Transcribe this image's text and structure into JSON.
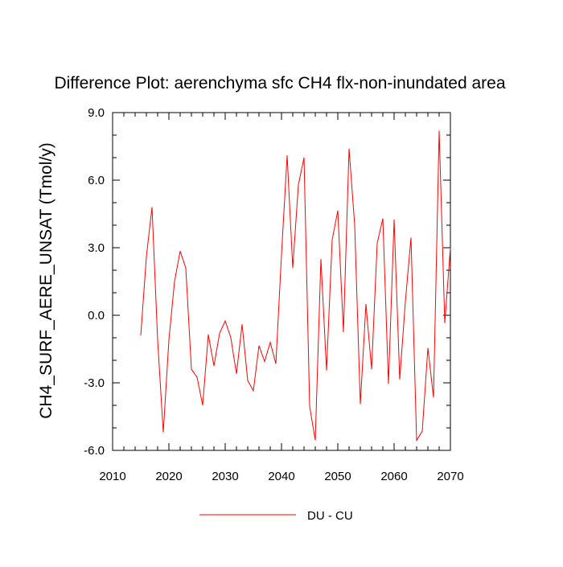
{
  "chart_data": {
    "type": "line",
    "title": "Difference Plot: aerenchyma sfc CH4 flx-non-inundated area",
    "xlabel": "",
    "ylabel": "CH4_SURF_AERE_UNSAT  (Tmol/y)",
    "xlim": [
      2010,
      2070
    ],
    "ylim": [
      -6.0,
      9.0
    ],
    "xticks": [
      2010,
      2020,
      2030,
      2040,
      2050,
      2060,
      2070
    ],
    "xtick_labels": [
      "2010",
      "2020",
      "2030",
      "2040",
      "2050",
      "2060",
      "2070"
    ],
    "yticks": [
      -6.0,
      -3.0,
      0.0,
      3.0,
      6.0,
      9.0
    ],
    "ytick_labels": [
      "-6.0",
      "-3.0",
      "0.0",
      "3.0",
      "6.0",
      "9.0"
    ],
    "legend_position": "bottom-center",
    "series": [
      {
        "name": "DU - CU",
        "color": "#ff0000",
        "x": [
          2015,
          2016,
          2017,
          2018,
          2019,
          2020,
          2021,
          2022,
          2023,
          2024,
          2025,
          2026,
          2027,
          2028,
          2029,
          2030,
          2031,
          2032,
          2033,
          2034,
          2035,
          2036,
          2037,
          2038,
          2039,
          2040,
          2041,
          2042,
          2043,
          2044,
          2045,
          2046,
          2047,
          2048,
          2049,
          2050,
          2051,
          2052,
          2053,
          2054,
          2055,
          2056,
          2057,
          2058,
          2059,
          2060,
          2061,
          2062,
          2063,
          2064,
          2065,
          2066,
          2067,
          2068,
          2069,
          2070
        ],
        "values": [
          -0.9,
          2.6,
          4.8,
          -1.1,
          -5.2,
          -1.1,
          1.5,
          2.85,
          2.1,
          -2.4,
          -2.75,
          -4.0,
          -0.85,
          -2.25,
          -0.8,
          -0.25,
          -1.0,
          -2.6,
          -0.4,
          -2.9,
          -3.35,
          -1.35,
          -2.05,
          -1.2,
          -2.15,
          2.7,
          7.1,
          2.1,
          5.8,
          7.0,
          -4.05,
          -5.55,
          2.5,
          -2.45,
          3.35,
          4.65,
          -0.75,
          7.4,
          4.0,
          -3.95,
          0.5,
          -2.4,
          3.2,
          4.3,
          -3.05,
          4.25,
          -2.85,
          0.6,
          3.45,
          -5.55,
          -5.15,
          -1.45,
          -3.65,
          8.2,
          -0.35,
          3.0
        ]
      }
    ]
  }
}
